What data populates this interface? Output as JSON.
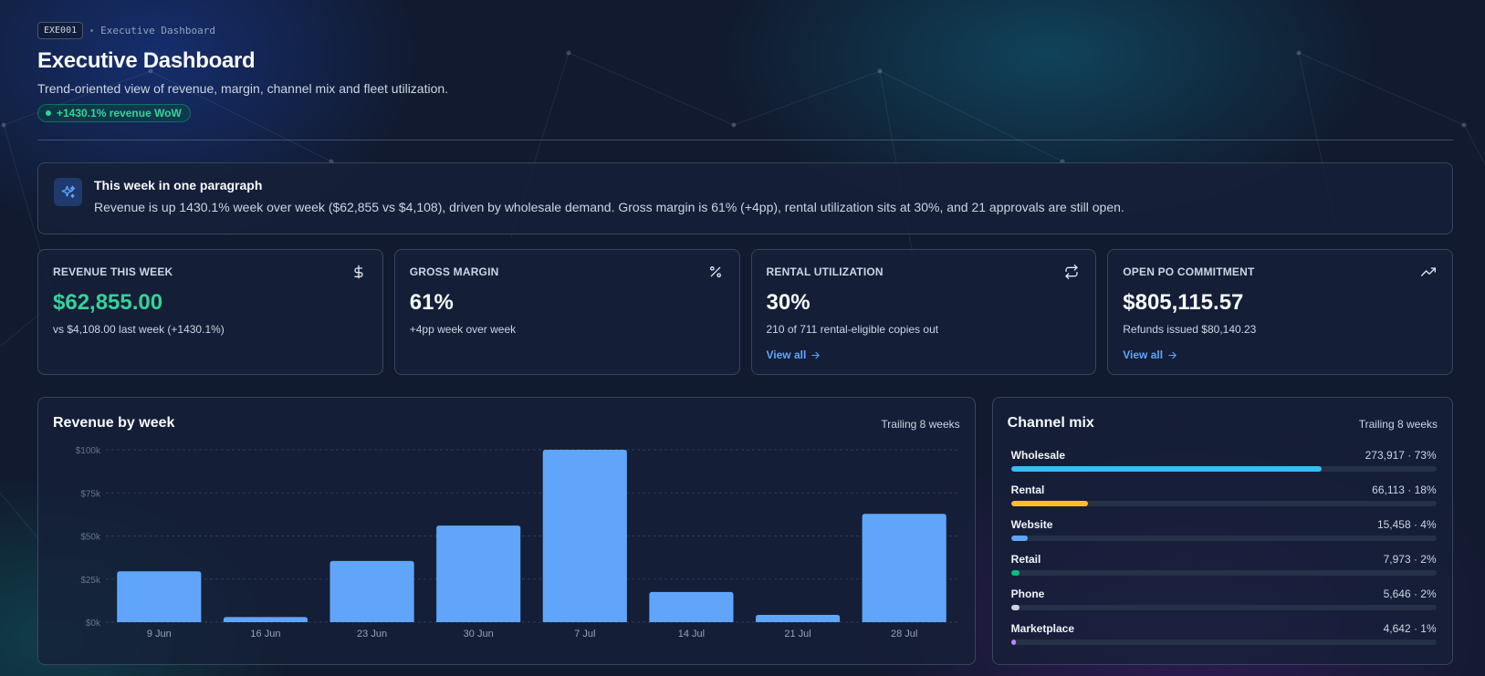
{
  "breadcrumb": {
    "code": "EXE001",
    "label": "Executive Dashboard"
  },
  "header": {
    "title": "Executive Dashboard",
    "subtitle": "Trend-oriented view of revenue, margin, channel mix and fleet utilization.",
    "badge": "+1430.1% revenue WoW"
  },
  "summary": {
    "icon": "sparkles-icon",
    "title": "This week in one paragraph",
    "text": "Revenue is up 1430.1% week over week ($62,855 vs $4,108), driven by wholesale demand. Gross margin is 61% (+4pp), rental utilization sits at 30%, and 21 approvals are still open."
  },
  "kpis": [
    {
      "label": "REVENUE THIS WEEK",
      "icon": "dollar-icon",
      "value": "$62,855.00",
      "sub": "vs $4,108.00 last week (+1430.1%)",
      "link": ""
    },
    {
      "label": "GROSS MARGIN",
      "icon": "percent-icon",
      "value": "61%",
      "sub": "+4pp week over week",
      "link": ""
    },
    {
      "label": "RENTAL UTILIZATION",
      "icon": "repeat-icon",
      "value": "30%",
      "sub": "210 of 711 rental-eligible copies out",
      "link": "View all"
    },
    {
      "label": "OPEN PO COMMITMENT",
      "icon": "trending-up-icon",
      "value": "$805,115.57",
      "sub": "Refunds issued $80,140.23",
      "link": "View all"
    }
  ],
  "revenue_panel": {
    "title": "Revenue by week",
    "aside": "Trailing 8 weeks"
  },
  "mix_panel": {
    "title": "Channel mix",
    "aside": "Trailing 8 weeks",
    "items": [
      {
        "name": "Wholesale",
        "value": "273,917 · 73%",
        "share": 0.73,
        "color": "#38bdf8"
      },
      {
        "name": "Rental",
        "value": "66,113 · 18%",
        "share": 0.18,
        "color": "#fbbf24"
      },
      {
        "name": "Website",
        "value": "15,458 · 4%",
        "share": 0.04,
        "color": "#60a5fa"
      },
      {
        "name": "Retail",
        "value": "7,973 · 2%",
        "share": 0.02,
        "color": "#10b981"
      },
      {
        "name": "Phone",
        "value": "5,646 · 2%",
        "share": 0.02,
        "color": "#cbd5e1"
      },
      {
        "name": "Marketplace",
        "value": "4,642 · 1%",
        "share": 0.01,
        "color": "#c084fc"
      }
    ]
  },
  "colors": {
    "bar": "#60a5fa",
    "positive": "#34d399",
    "link": "#60a5fa"
  },
  "chart_data": {
    "type": "bar",
    "categories": [
      "9 Jun",
      "16 Jun",
      "23 Jun",
      "30 Jun",
      "7 Jul",
      "14 Jul",
      "21 Jul",
      "28 Jul"
    ],
    "values": [
      29500,
      3000,
      35500,
      56000,
      100000,
      17500,
      4200,
      62855
    ],
    "yticks": [
      0,
      25000,
      50000,
      75000,
      100000
    ],
    "ytick_labels": [
      "$0k",
      "$25k",
      "$50k",
      "$75k",
      "$100k"
    ],
    "ylim": [
      0,
      100000
    ],
    "grid": true,
    "title": "Revenue by week",
    "xlabel": "",
    "ylabel": ""
  }
}
